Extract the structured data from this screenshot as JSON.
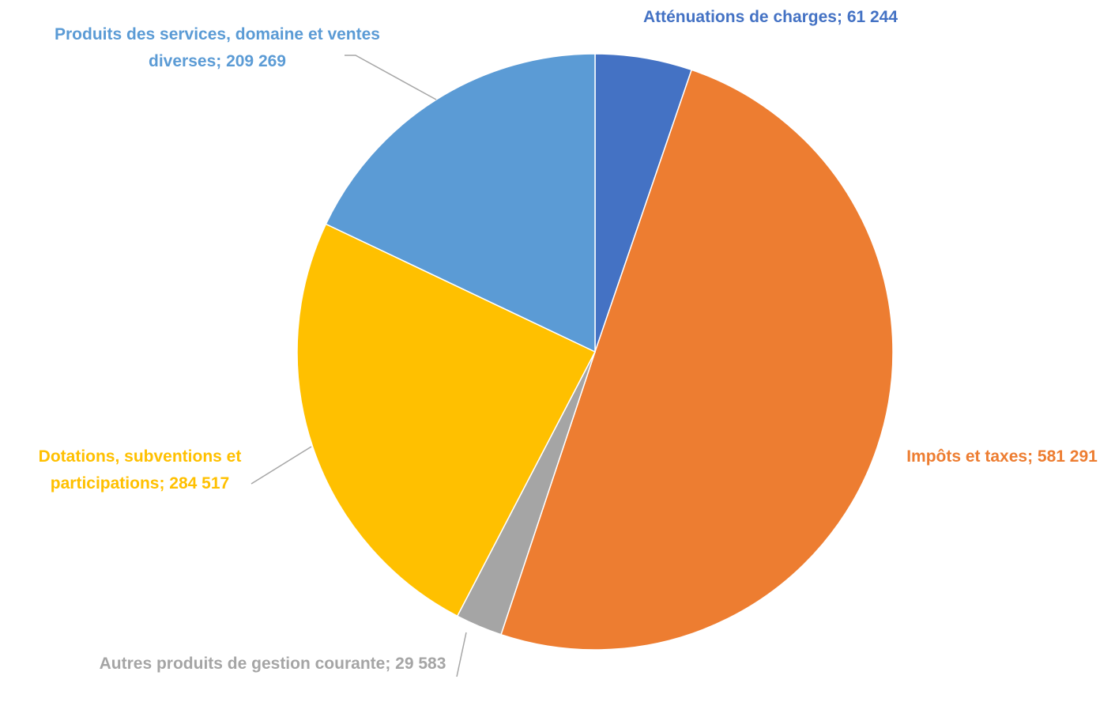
{
  "chart_data": {
    "type": "pie",
    "values": [
      61244,
      581291,
      29583,
      284517,
      209269
    ],
    "value_labels": [
      "Atténuations de charges; 61 244",
      "Impôts et taxes; 581 291",
      "Autres produits de gestion courante; 29 583",
      "Dotations, subventions et participations; 284 517",
      "Produits des services, domaine et ventes diverses; 209 269"
    ],
    "colors": [
      "#4472c4",
      "#ed7d31",
      "#a5a5a5",
      "#ffc000",
      "#5b9bd5"
    ]
  }
}
